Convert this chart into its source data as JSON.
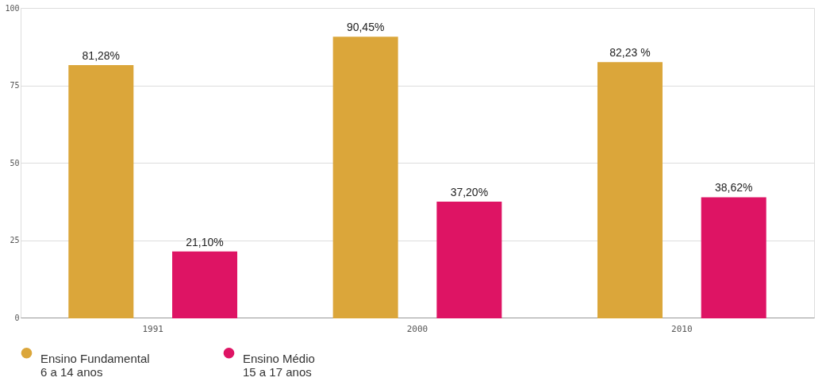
{
  "chart_data": {
    "type": "bar",
    "categories": [
      "1991",
      "2000",
      "2010"
    ],
    "series": [
      {
        "name": "Ensino Fundamental\n6 a 14 anos",
        "color": "#dba63a",
        "values": [
          81.28,
          90.45,
          82.23
        ],
        "value_labels": [
          "81,28%",
          "90,45%",
          "82,23 %"
        ]
      },
      {
        "name": "Ensino Médio\n15 a 17 anos",
        "color": "#de1464",
        "values": [
          21.1,
          37.2,
          38.62
        ],
        "value_labels": [
          "21,10%",
          "37,20%",
          "38,62%"
        ]
      }
    ],
    "ylim": [
      0,
      100
    ],
    "yticks": [
      0,
      25,
      50,
      75,
      100
    ],
    "grid": "y",
    "legend": "bottom"
  }
}
